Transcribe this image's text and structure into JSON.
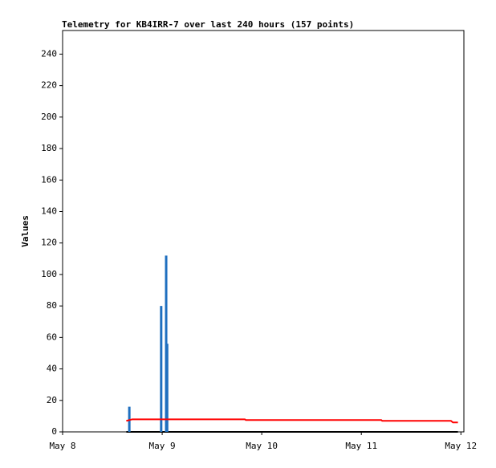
{
  "chart_data": {
    "type": "line",
    "title": "Telemetry for KB4IRR-7 over last 240 hours (157 points)",
    "y_label": "Values",
    "xlim": [
      8,
      12.03
    ],
    "ylim": [
      0,
      255
    ],
    "xticks": [
      {
        "value": 8,
        "label": "May 8"
      },
      {
        "value": 9,
        "label": "May 9"
      },
      {
        "value": 10,
        "label": "May 10"
      },
      {
        "value": 11,
        "label": "May 11"
      },
      {
        "value": 12,
        "label": "May 12"
      }
    ],
    "yticks": [
      0,
      20,
      40,
      60,
      80,
      100,
      120,
      140,
      160,
      180,
      200,
      220,
      240
    ],
    "series": [
      {
        "type": "line",
        "color": "#000000",
        "x": [
          8.64,
          11.97
        ],
        "values": [
          0,
          0
        ]
      },
      {
        "type": "bar",
        "color": "#1f6fbf",
        "x": [
          8.67,
          8.99,
          9.04,
          9.05
        ],
        "values": [
          16,
          80,
          112,
          56
        ]
      },
      {
        "type": "line",
        "color": "#ff0000",
        "x": [
          8.64,
          8.7,
          9.83,
          9.84,
          11.2,
          11.21,
          11.9,
          11.92,
          11.97
        ],
        "values": [
          7,
          8,
          8,
          7.5,
          7.5,
          7,
          7,
          6,
          6
        ]
      }
    ]
  }
}
